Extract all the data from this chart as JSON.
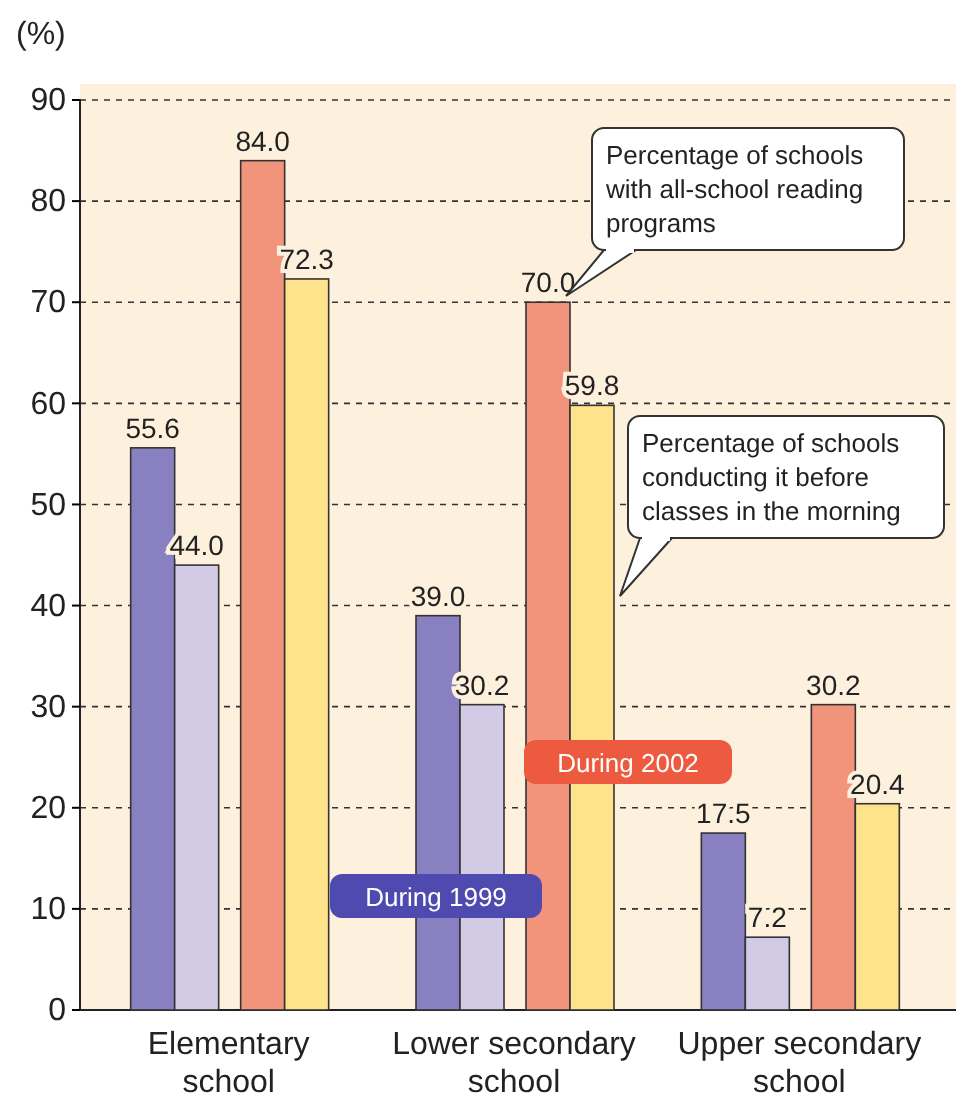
{
  "chart_data": {
    "type": "bar",
    "ylabel": "(%)",
    "categories": [
      "Elementary school",
      "Lower secondary school",
      "Upper secondary school"
    ],
    "series": [
      {
        "color": "#8880c0",
        "values": [
          55.6,
          39.0,
          17.5
        ],
        "value_labels": [
          "55.6",
          "39.0",
          "17.5"
        ]
      },
      {
        "color": "#d3cbe6",
        "values": [
          44.0,
          30.2,
          7.2
        ],
        "value_labels": [
          "44.0",
          "30.2",
          "7.2"
        ]
      },
      {
        "color": "#f2937c",
        "values": [
          84.0,
          70.0,
          30.2
        ],
        "value_labels": [
          "84.0",
          "70.0",
          "30.2"
        ]
      },
      {
        "color": "#ffe38c",
        "values": [
          72.3,
          59.8,
          20.4
        ],
        "value_labels": [
          "72.3",
          "59.8",
          "20.4"
        ]
      }
    ],
    "ylim": [
      0,
      90
    ],
    "yticks": [
      0,
      10,
      20,
      30,
      40,
      50,
      60,
      70,
      80,
      90
    ],
    "grid": "y",
    "annotations": [
      "Percentage of schools with all-school reading programs",
      "Percentage of schools conducting it before classes in the morning",
      "During 2002",
      "During 1999"
    ]
  }
}
